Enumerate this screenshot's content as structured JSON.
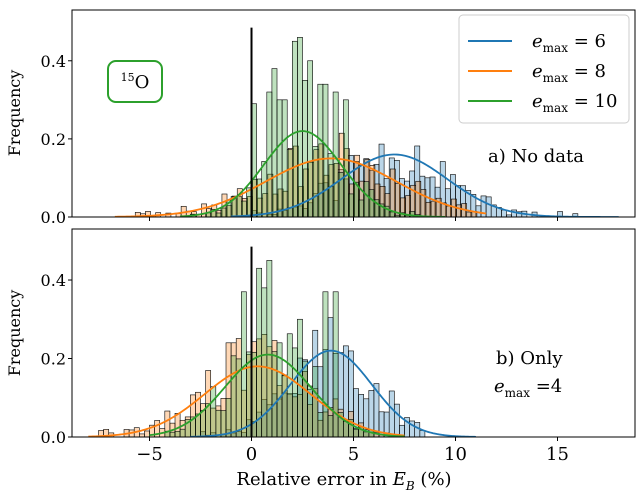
{
  "colors": {
    "blue": "#1f77b4",
    "orange": "#ff7f0e",
    "green": "#2ca02c",
    "axis": "#000000",
    "legend_border": "#cccccc"
  },
  "chart_data": [
    {
      "type": "area",
      "panel_label": "a) No data",
      "ylabel": "Frequency",
      "xlabel": "",
      "xlim": [
        -8.8,
        18.8
      ],
      "ylim": [
        0,
        0.53
      ],
      "xticks": [
        -5,
        0,
        5,
        10,
        15
      ],
      "yticks": [
        0.0,
        0.2,
        0.4
      ],
      "ytick_labels": [
        "0.0",
        "0.2",
        "0.4"
      ],
      "show_x_tick_labels": false,
      "vline_x": 0,
      "nucleus_label": {
        "mass": "15",
        "symbol": "O"
      },
      "legend": {
        "placement": "top-right",
        "entries": [
          {
            "prefix": "e",
            "sub": "max",
            "suffix": " = 6",
            "color_key": "blue"
          },
          {
            "prefix": "e",
            "sub": "max",
            "suffix": " = 8",
            "color_key": "orange"
          },
          {
            "prefix": "e",
            "sub": "max",
            "suffix": " = 10",
            "color_key": "green"
          }
        ]
      },
      "series": [
        {
          "name": "emax = 6",
          "color_key": "blue",
          "mean": 7.0,
          "sd": 2.6,
          "peak": 0.16,
          "xmin": -0.5,
          "xmax": 17.5,
          "seed": 11
        },
        {
          "name": "emax = 8",
          "color_key": "orange",
          "mean": 3.9,
          "sd": 3.2,
          "peak": 0.15,
          "xmin": -6.2,
          "xmax": 11.0,
          "seed": 23
        },
        {
          "name": "emax = 10",
          "color_key": "green",
          "mean": 2.5,
          "sd": 1.9,
          "peak": 0.22,
          "xmin": -3.0,
          "xmax": 9.0,
          "seed": 37,
          "spikes": [
            [
              0.2,
              0.29
            ],
            [
              0.8,
              0.32
            ],
            [
              1.2,
              0.38
            ],
            [
              1.5,
              0.3
            ],
            [
              2.2,
              0.45
            ],
            [
              2.4,
              0.46
            ],
            [
              2.7,
              0.35
            ],
            [
              2.9,
              0.4
            ],
            [
              3.3,
              0.42
            ],
            [
              3.5,
              0.34
            ],
            [
              4.2,
              0.32
            ],
            [
              4.6,
              0.3
            ]
          ]
        }
      ]
    },
    {
      "type": "area",
      "panel_label_line1": "b) Only",
      "panel_label_line2": {
        "prefix": "e",
        "sub": "max",
        "suffix": " =4"
      },
      "ylabel": "Frequency",
      "xlabel": "Relative error in E_B (%)",
      "xlim": [
        -8.8,
        18.8
      ],
      "ylim": [
        0,
        0.53
      ],
      "xticks": [
        -5,
        0,
        5,
        10,
        15
      ],
      "xtick_labels": [
        "−5",
        "0",
        "5",
        "10",
        "15"
      ],
      "yticks": [
        0.0,
        0.2,
        0.4
      ],
      "ytick_labels": [
        "0.0",
        "0.2",
        "0.4"
      ],
      "show_x_tick_labels": true,
      "vline_x": 0,
      "series": [
        {
          "name": "emax = 6",
          "color_key": "blue",
          "mean": 3.9,
          "sd": 2.0,
          "peak": 0.22,
          "xmin": -2.5,
          "xmax": 10.5,
          "seed": 51
        },
        {
          "name": "emax = 8",
          "color_key": "orange",
          "mean": 0.3,
          "sd": 2.6,
          "peak": 0.18,
          "xmin": -7.5,
          "xmax": 7.0,
          "seed": 63,
          "spikes": [
            [
              -1.0,
              0.24
            ],
            [
              -0.2,
              0.21
            ],
            [
              0.3,
              0.25
            ],
            [
              0.9,
              0.23
            ]
          ]
        },
        {
          "name": "emax = 10",
          "color_key": "green",
          "mean": 0.8,
          "sd": 2.1,
          "peak": 0.21,
          "xmin": -4.5,
          "xmax": 7.0,
          "seed": 77,
          "spikes": [
            [
              -0.4,
              0.37
            ],
            [
              0.3,
              0.43
            ],
            [
              0.7,
              0.38
            ],
            [
              0.9,
              0.45
            ],
            [
              1.3,
              0.24
            ],
            [
              2.3,
              0.3
            ],
            [
              3.7,
              0.37
            ],
            [
              4.1,
              0.37
            ]
          ]
        }
      ]
    }
  ],
  "xlabel_text": {
    "prefix": "Relative error in ",
    "var": "E",
    "sub": "B",
    "suffix": " (%)"
  }
}
